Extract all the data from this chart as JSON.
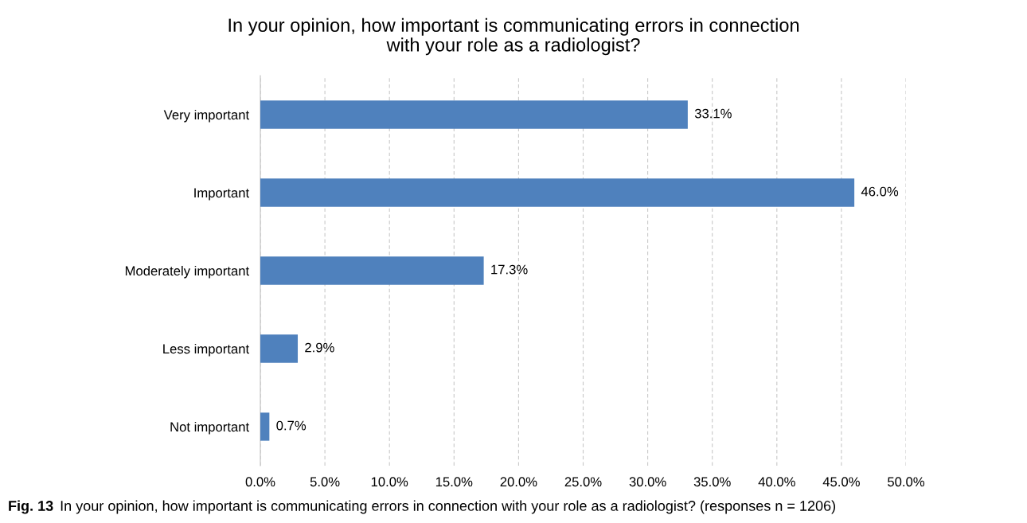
{
  "chart_data": {
    "type": "bar",
    "orientation": "horizontal",
    "title": "In your opinion, how important is communicating errors in connection\nwith your role as a radiologist?",
    "categories": [
      "Very important",
      "Important",
      "Moderately important",
      "Less important",
      "Not important"
    ],
    "values": [
      33.1,
      46.0,
      17.3,
      2.9,
      0.7
    ],
    "value_labels": [
      "33.1%",
      "46.0%",
      "17.3%",
      "2.9%",
      "0.7%"
    ],
    "color": "#4f81bd",
    "xlim": [
      0,
      50
    ],
    "xticks": [
      {
        "value": 0,
        "label": "0.0%"
      },
      {
        "value": 5,
        "label": "5.0%"
      },
      {
        "value": 10,
        "label": "10.0%"
      },
      {
        "value": 15,
        "label": "15.0%"
      },
      {
        "value": 20,
        "label": "20.0%"
      },
      {
        "value": 25,
        "label": "25.0%"
      },
      {
        "value": 30,
        "label": "30.0%"
      },
      {
        "value": 35,
        "label": "35.0%"
      },
      {
        "value": 40,
        "label": "40.0%"
      },
      {
        "value": 45,
        "label": "45.0%"
      },
      {
        "value": 50,
        "label": "50.0%"
      }
    ],
    "grid": "x",
    "legend": false,
    "annotations": [
      "Fig. 13",
      "In your opinion, how important is communicating errors in connection with your role as a radiologist? (responses n = 1206)"
    ]
  }
}
